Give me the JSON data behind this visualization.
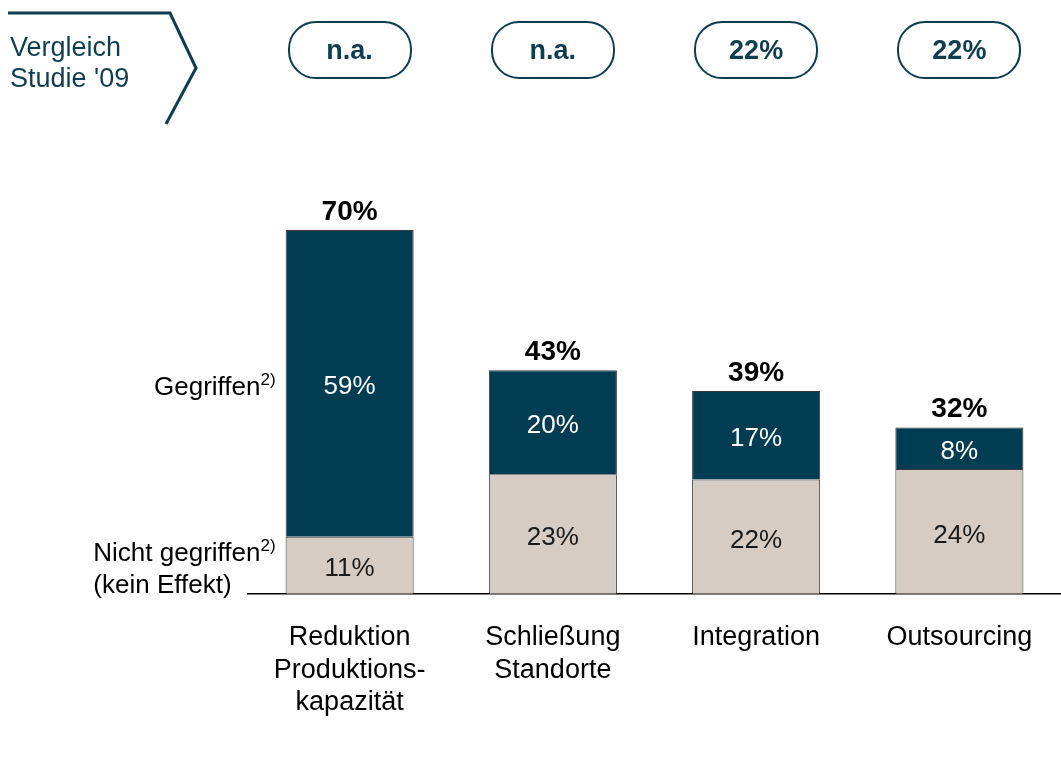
{
  "chart_data": {
    "type": "bar",
    "stacked": true,
    "categories": [
      "Reduktion\nProduktions-\nkapazität",
      "Schließung\nStandorte",
      "Integration",
      "Outsourcing"
    ],
    "series": [
      {
        "name": "Nicht gegriffen$^{2)}$\n(kein Effekt)",
        "color": "#d6ccc4",
        "values": [
          11,
          23,
          22,
          24
        ],
        "value_labels": [
          "11%",
          "23%",
          "22%",
          "24%"
        ]
      },
      {
        "name": "Gegriffen$^{2)}$",
        "color": "#003d52",
        "values": [
          59,
          20,
          17,
          8
        ],
        "value_labels": [
          "59%",
          "20%",
          "17%",
          "8%"
        ]
      }
    ],
    "totals": [
      "70%",
      "43%",
      "39%",
      "32%"
    ],
    "annotations": [
      "Vergleich Studie '09",
      "n.a.",
      "n.a.",
      "22%",
      "22%"
    ]
  }
}
